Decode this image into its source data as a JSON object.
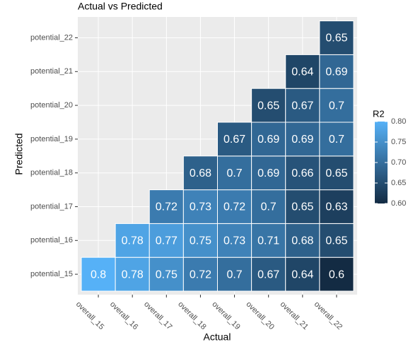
{
  "chart_data": {
    "type": "heatmap",
    "title": "Actual vs Predicted",
    "x_label": "Actual",
    "y_label": "Predicted",
    "x_categories": [
      "overall_15",
      "overall_16",
      "overall_17",
      "overall_18",
      "overall_19",
      "overall_20",
      "overall_21",
      "overall_22"
    ],
    "y_categories": [
      "potential_15",
      "potential_16",
      "potential_17",
      "potential_18",
      "potential_19",
      "potential_20",
      "potential_21",
      "potential_22"
    ],
    "values": [
      [
        0.8,
        0.78,
        0.75,
        0.72,
        0.7,
        0.67,
        0.64,
        0.6
      ],
      [
        null,
        0.78,
        0.77,
        0.75,
        0.73,
        0.71,
        0.68,
        0.65
      ],
      [
        null,
        null,
        0.72,
        0.73,
        0.72,
        0.7,
        0.65,
        0.63
      ],
      [
        null,
        null,
        null,
        0.68,
        0.7,
        0.69,
        0.66,
        0.65
      ],
      [
        null,
        null,
        null,
        null,
        0.67,
        0.69,
        0.69,
        0.7
      ],
      [
        null,
        null,
        null,
        null,
        null,
        0.65,
        0.67,
        0.7
      ],
      [
        null,
        null,
        null,
        null,
        null,
        null,
        0.64,
        0.69
      ],
      [
        null,
        null,
        null,
        null,
        null,
        null,
        null,
        0.65
      ]
    ],
    "legend_title": "R2",
    "colors": [
      "#132B43",
      "#56B1F7"
    ],
    "colorlim": [
      0.6,
      0.8
    ],
    "colorticks": [
      {
        "value": 0.6,
        "label": "0.60"
      },
      0.65,
      {
        "value": 0.7,
        "label": "0.70"
      },
      0.75,
      {
        "value": 0.8,
        "label": "0.80"
      }
    ],
    "grid": true
  }
}
